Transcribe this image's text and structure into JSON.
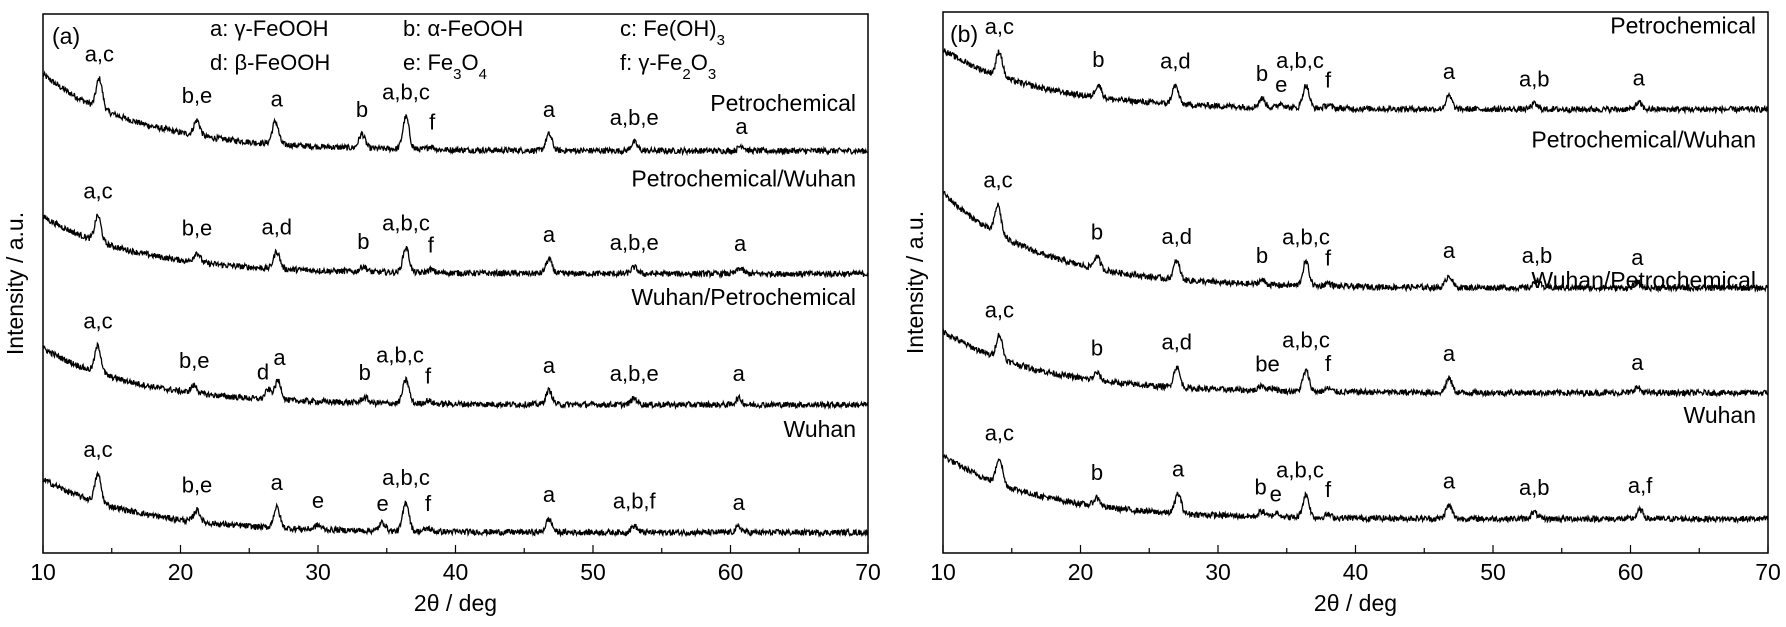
{
  "chart_data": [
    {
      "type": "line",
      "panel_label": "(a)",
      "xlabel": "2θ / deg",
      "ylabel": "Intensity / a.u.",
      "xlim": [
        10,
        70
      ],
      "ylim": [
        0,
        100
      ],
      "xticks": [
        "10",
        "20",
        "30",
        "40",
        "50",
        "60",
        "70"
      ],
      "legend": [
        "a: γ-FeOOH",
        "b: α-FeOOH",
        "c: Fe(OH)3",
        "d: β-FeOOH",
        "e: Fe3O4",
        "f: γ-Fe2O3"
      ],
      "series": [
        {
          "name": "Petrochemical",
          "start": 88.8,
          "end": 74.6,
          "name_y": 82,
          "peaks": [
            [
              14.1,
              5.5
            ],
            [
              21.2,
              2.8
            ],
            [
              26.9,
              4.2
            ],
            [
              33.2,
              2.6
            ],
            [
              36.4,
              6.0
            ],
            [
              38.2,
              0.6
            ],
            [
              46.8,
              3.0
            ],
            [
              53.0,
              1.6
            ],
            [
              60.8,
              1.0
            ]
          ],
          "labels": [
            [
              "a,c",
              14.1
            ],
            [
              "b,e",
              21.2
            ],
            [
              "a",
              27.0
            ],
            [
              "b",
              33.2
            ],
            [
              "a,b,c",
              36.4
            ],
            [
              "f",
              38.3
            ],
            [
              "a",
              46.8
            ],
            [
              "a,b,e",
              53.0
            ],
            [
              "a",
              60.8
            ]
          ]
        },
        {
          "name": "Petrochemical/Wuhan",
          "start": 62.4,
          "end": 51.8,
          "name_y": 68,
          "peaks": [
            [
              14.0,
              4.8
            ],
            [
              21.2,
              1.8
            ],
            [
              27.0,
              3.2
            ],
            [
              33.3,
              1.0
            ],
            [
              36.4,
              4.6
            ],
            [
              38.2,
              0.6
            ],
            [
              46.8,
              2.6
            ],
            [
              53.0,
              1.2
            ],
            [
              60.7,
              1.0
            ]
          ],
          "labels": [
            [
              "a,c",
              14.0
            ],
            [
              "b,e",
              21.2
            ],
            [
              "a,d",
              27.0
            ],
            [
              "b",
              33.3
            ],
            [
              "a,b,c",
              36.4
            ],
            [
              "f",
              38.2
            ],
            [
              "a",
              46.8
            ],
            [
              "a,b,e",
              53.0
            ],
            [
              "a",
              60.7
            ]
          ]
        },
        {
          "name": "Wuhan/Petrochemical",
          "start": 38.0,
          "end": 27.5,
          "name_y": 46,
          "peaks": [
            [
              14.0,
              5.0
            ],
            [
              21.0,
              1.4
            ],
            [
              26.4,
              1.8
            ],
            [
              27.1,
              3.6
            ],
            [
              33.4,
              1.0
            ],
            [
              36.4,
              4.4
            ],
            [
              38.0,
              0.6
            ],
            [
              46.8,
              2.6
            ],
            [
              53.0,
              1.2
            ],
            [
              60.6,
              1.2
            ]
          ],
          "labels": [
            [
              "a,c",
              14.0
            ],
            [
              "b,e",
              21.0
            ],
            [
              "d",
              26.0
            ],
            [
              "a",
              27.2
            ],
            [
              "b",
              33.4
            ],
            [
              "a,b,c",
              36.4
            ],
            [
              "f",
              38.0
            ],
            [
              "a",
              46.8
            ],
            [
              "a,b,e",
              53.0
            ],
            [
              "a",
              60.6
            ]
          ]
        },
        {
          "name": "Wuhan",
          "start": 13.7,
          "end": 3.8,
          "name_y": 21.5,
          "peaks": [
            [
              14.0,
              5.2
            ],
            [
              21.2,
              2.2
            ],
            [
              27.0,
              3.8
            ],
            [
              30.0,
              0.8
            ],
            [
              34.7,
              1.6
            ],
            [
              36.4,
              5.4
            ],
            [
              38.0,
              0.6
            ],
            [
              46.8,
              2.4
            ],
            [
              53.0,
              1.2
            ],
            [
              60.6,
              1.0
            ]
          ],
          "labels": [
            [
              "a,c",
              14.0
            ],
            [
              "b,e",
              21.2
            ],
            [
              "a",
              27.0
            ],
            [
              "e",
              30.0
            ],
            [
              "e",
              34.7
            ],
            [
              "a,b,c",
              36.4
            ],
            [
              "f",
              38.0
            ],
            [
              "a",
              46.8
            ],
            [
              "a,b,f",
              53.0
            ],
            [
              "a",
              60.6
            ]
          ]
        }
      ]
    },
    {
      "type": "line",
      "panel_label": "(b)",
      "xlabel": "2θ / deg",
      "ylabel": "Intensity / a.u.",
      "xlim": [
        10,
        70
      ],
      "ylim": [
        0,
        100
      ],
      "xticks": [
        "10",
        "20",
        "30",
        "40",
        "50",
        "60",
        "70"
      ],
      "series": [
        {
          "name": "Petrochemical",
          "start": 93.0,
          "end": 82.0,
          "name_y": 96,
          "peaks": [
            [
              14.1,
              4.6
            ],
            [
              21.3,
              2.4
            ],
            [
              26.9,
              3.4
            ],
            [
              33.2,
              1.6
            ],
            [
              34.6,
              0.8
            ],
            [
              36.4,
              4.2
            ],
            [
              38.0,
              0.6
            ],
            [
              46.8,
              2.4
            ],
            [
              53.0,
              1.0
            ],
            [
              60.6,
              1.2
            ]
          ],
          "labels": [
            [
              "a,c",
              14.1
            ],
            [
              "b",
              21.3
            ],
            [
              "a,d",
              26.9
            ],
            [
              "b",
              33.2
            ],
            [
              "e",
              34.6
            ],
            [
              "a,b,c",
              36.4
            ],
            [
              "f",
              38.0
            ],
            [
              "a",
              46.8
            ],
            [
              "a,b",
              53.0
            ],
            [
              "a",
              60.6
            ]
          ]
        },
        {
          "name": "Petrochemical/Wuhan",
          "start": 66.6,
          "end": 49.0,
          "name_y": 75,
          "peaks": [
            [
              14.0,
              5.4
            ],
            [
              21.2,
              2.2
            ],
            [
              27.0,
              3.4
            ],
            [
              33.2,
              0.8
            ],
            [
              36.4,
              4.4
            ],
            [
              38.0,
              0.6
            ],
            [
              46.8,
              2.2
            ],
            [
              53.2,
              1.4
            ],
            [
              60.5,
              1.0
            ]
          ],
          "labels": [
            [
              "a,c",
              14.0
            ],
            [
              "b",
              21.2
            ],
            [
              "a,d",
              27.0
            ],
            [
              "b",
              33.2
            ],
            [
              "a,b,c",
              36.4
            ],
            [
              "f",
              38.0
            ],
            [
              "a",
              46.8
            ],
            [
              "a,b",
              53.2
            ],
            [
              "a",
              60.5
            ]
          ]
        },
        {
          "name": "Wuhan/Petrochemical",
          "start": 41.0,
          "end": 29.6,
          "name_y": 49,
          "peaks": [
            [
              14.1,
              4.4
            ],
            [
              21.2,
              1.4
            ],
            [
              27.0,
              3.8
            ],
            [
              33.2,
              1.0
            ],
            [
              34.0,
              0.6
            ],
            [
              36.4,
              3.8
            ],
            [
              38.0,
              0.6
            ],
            [
              46.8,
              2.6
            ],
            [
              60.5,
              1.0
            ]
          ],
          "labels": [
            [
              "a,c",
              14.1
            ],
            [
              "b",
              21.2
            ],
            [
              "a,d",
              27.0
            ],
            [
              "be",
              33.6
            ],
            [
              "a,b,c",
              36.4
            ],
            [
              "f",
              38.0
            ],
            [
              "a",
              46.8
            ],
            [
              "a",
              60.5
            ]
          ]
        },
        {
          "name": "Wuhan",
          "start": 18.0,
          "end": 6.3,
          "name_y": 24,
          "peaks": [
            [
              14.1,
              4.8
            ],
            [
              21.2,
              1.6
            ],
            [
              27.1,
              3.6
            ],
            [
              33.2,
              1.0
            ],
            [
              34.3,
              0.8
            ],
            [
              36.4,
              4.2
            ],
            [
              38.0,
              0.6
            ],
            [
              46.8,
              2.4
            ],
            [
              53.0,
              1.2
            ],
            [
              60.7,
              1.6
            ]
          ],
          "labels": [
            [
              "a,c",
              14.1
            ],
            [
              "b",
              21.2
            ],
            [
              "a",
              27.1
            ],
            [
              "b",
              33.1
            ],
            [
              "e",
              34.2
            ],
            [
              "a,b,c",
              36.4
            ],
            [
              "f",
              38.0
            ],
            [
              "a",
              46.8
            ],
            [
              "a,b",
              53.0
            ],
            [
              "a,f",
              60.7
            ]
          ]
        }
      ]
    }
  ]
}
